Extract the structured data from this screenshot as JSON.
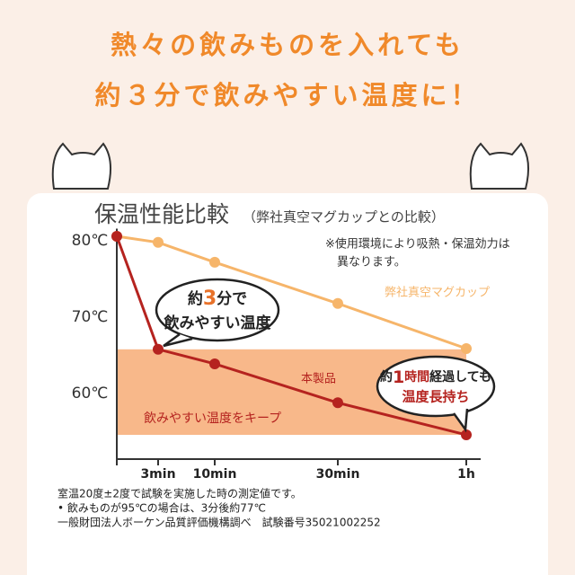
{
  "header": {
    "line1": "熱々の飲みものを入れても",
    "line2": "約３分で飲みやすい温度に！"
  },
  "chart_data": {
    "type": "line",
    "title": "保温性能比較",
    "subtitle": "（弊社真空マグカップとの比較）",
    "categories": [
      null,
      "3min",
      "10min",
      "30min",
      "1h"
    ],
    "series": [
      {
        "name": "弊社真空マグカップ",
        "color": "#f6b56a",
        "values": [
          80,
          79.2,
          76.6,
          71.2,
          65.3
        ]
      },
      {
        "name": "本製品",
        "color": "#b5231f",
        "values": [
          80,
          65.2,
          63.3,
          58.2,
          54
        ]
      }
    ],
    "band": {
      "label": "飲みやすい温度をキープ",
      "range": [
        54,
        65.2
      ],
      "color": "#f8b88a"
    },
    "ylim": [
      51,
      81
    ],
    "yticks": [
      {
        "value": 80,
        "label": "80℃"
      },
      {
        "value": 70,
        "label": "70℃"
      },
      {
        "value": 60,
        "label": "60℃"
      }
    ],
    "note": [
      "※使用環境により吸熱・保温効力は",
      "異なります。"
    ],
    "bubble1": [
      "約",
      "3",
      "分で",
      "飲みやすい温度"
    ],
    "bubble2": [
      "約",
      "1",
      "時間",
      "経過しても",
      "温度長持ち"
    ]
  },
  "footnotes": [
    "室温20度±2度で試験を実施した時の測定値です。",
    "• 飲みものが95℃の場合は、3分後約77℃",
    "一般財団法人ボーケン品質評価機構調べ　試験番号35021002252"
  ]
}
